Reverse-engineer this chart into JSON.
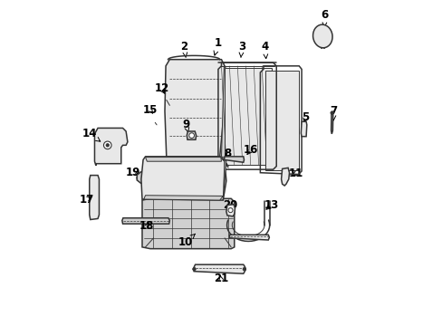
{
  "background_color": "#ffffff",
  "fig_width": 4.89,
  "fig_height": 3.6,
  "dpi": 100,
  "line_color": "#333333",
  "fill_light": "#e8e8e8",
  "fill_mid": "#d0d0d0",
  "fill_dark": "#b8b8b8",
  "text_color": "#000000",
  "font_size": 8.5,
  "labels_arrows": {
    "1": [
      0.49,
      0.87,
      0.478,
      0.83
    ],
    "2": [
      0.385,
      0.86,
      0.39,
      0.825
    ],
    "3": [
      0.563,
      0.86,
      0.56,
      0.825
    ],
    "4": [
      0.635,
      0.86,
      0.638,
      0.82
    ],
    "5": [
      0.76,
      0.64,
      0.753,
      0.615
    ],
    "6": [
      0.82,
      0.958,
      0.818,
      0.918
    ],
    "7": [
      0.847,
      0.66,
      0.847,
      0.63
    ],
    "8": [
      0.52,
      0.53,
      0.507,
      0.508
    ],
    "9": [
      0.39,
      0.62,
      0.398,
      0.593
    ],
    "10": [
      0.39,
      0.255,
      0.42,
      0.282
    ],
    "11": [
      0.73,
      0.468,
      0.71,
      0.458
    ],
    "12": [
      0.315,
      0.73,
      0.33,
      0.706
    ],
    "13": [
      0.655,
      0.37,
      0.63,
      0.35
    ],
    "14": [
      0.092,
      0.59,
      0.128,
      0.565
    ],
    "15": [
      0.279,
      0.665,
      0.294,
      0.645
    ],
    "16": [
      0.59,
      0.54,
      0.573,
      0.518
    ],
    "17": [
      0.083,
      0.388,
      0.108,
      0.4
    ],
    "18": [
      0.27,
      0.305,
      0.283,
      0.322
    ],
    "19": [
      0.228,
      0.472,
      0.25,
      0.455
    ],
    "20": [
      0.528,
      0.37,
      0.535,
      0.352
    ],
    "21": [
      0.498,
      0.143,
      0.493,
      0.162
    ]
  }
}
